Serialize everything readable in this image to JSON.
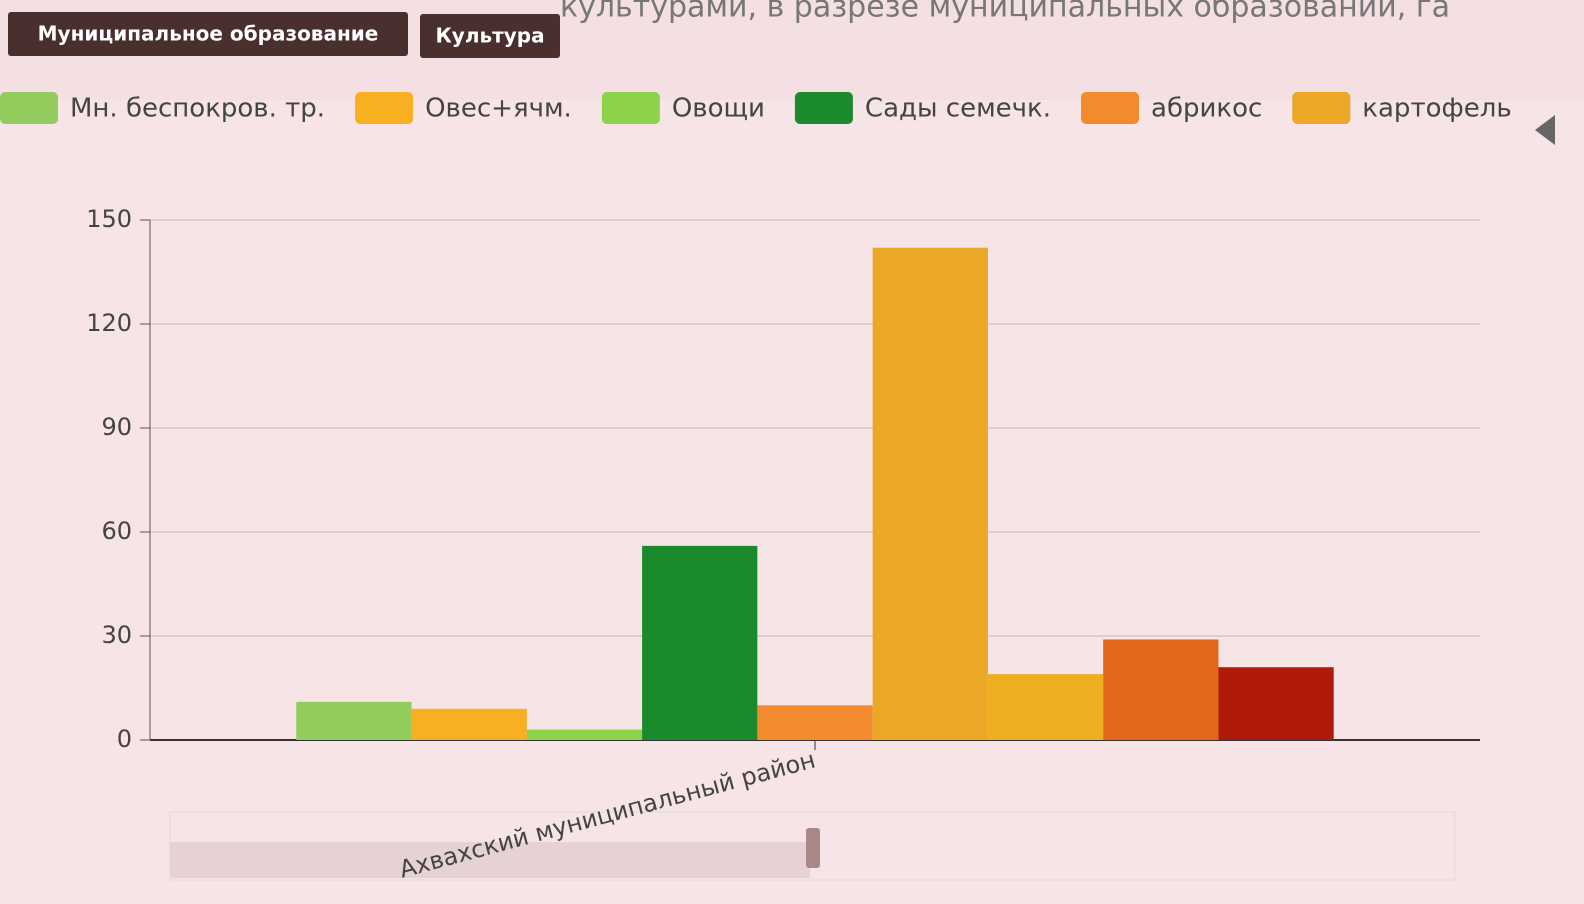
{
  "header": {
    "title": "культурами, в разрезе муниципальных образований, га",
    "buttons": [
      "Муниципальное образование",
      "Культура"
    ]
  },
  "chart_data": {
    "type": "bar",
    "categories": [
      "Ахвахский муниципальный район"
    ],
    "series": [
      {
        "name": "Мн. беспокров. тр.",
        "color": "#92cc5c",
        "values": [
          11
        ]
      },
      {
        "name": "Овес+ячм.",
        "color": "#f7b022",
        "values": [
          9
        ]
      },
      {
        "name": "Овощи",
        "color": "#8cd34a",
        "values": [
          3
        ]
      },
      {
        "name": "Сады семечк.",
        "color": "#1b8a2c",
        "values": [
          56
        ]
      },
      {
        "name": "абрикос",
        "color": "#f28b2e",
        "values": [
          10
        ]
      },
      {
        "name": "картофель",
        "color": "#eba726",
        "values": [
          142
        ]
      },
      {
        "color": "#eeae22",
        "values": [
          19
        ]
      },
      {
        "color": "#e4661a",
        "values": [
          29
        ]
      },
      {
        "color": "#b01a0a",
        "values": [
          21
        ]
      }
    ],
    "ylim": [
      0,
      150
    ],
    "yticks": [
      0,
      30,
      60,
      90,
      120,
      150
    ],
    "grid": true
  }
}
